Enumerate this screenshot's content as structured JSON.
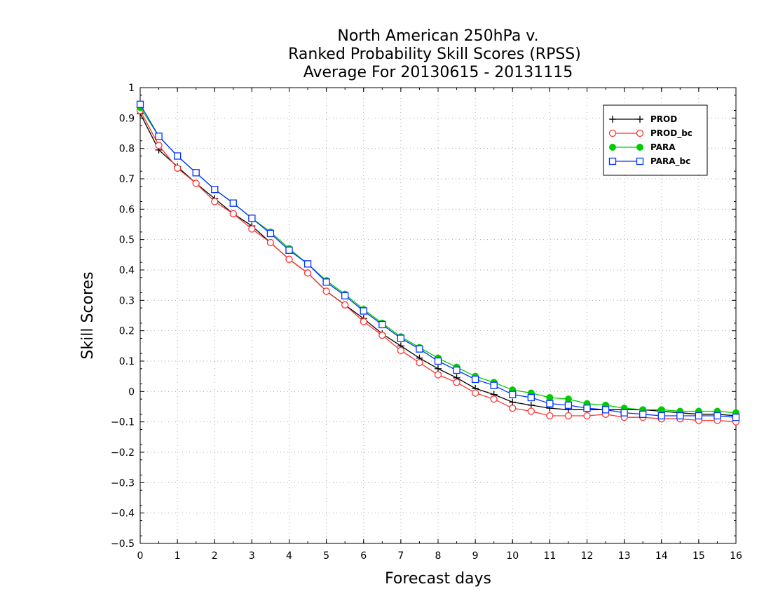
{
  "chart_data": {
    "type": "line",
    "title": [
      "North American 250hPa v.",
      "Ranked Probability Skill Scores (RPSS)",
      "Average For 20130615 - 20131115"
    ],
    "xlabel": "Forecast days",
    "ylabel": "Skill Scores",
    "xlim": [
      0,
      16
    ],
    "ylim": [
      -0.5,
      1
    ],
    "x_ticks": [
      0,
      1,
      2,
      3,
      4,
      5,
      6,
      7,
      8,
      9,
      10,
      11,
      12,
      13,
      14,
      15,
      16
    ],
    "y_ticks": [
      -0.5,
      -0.4,
      -0.3,
      -0.2,
      -0.1,
      0,
      0.1,
      0.2,
      0.3,
      0.4,
      0.5,
      0.6,
      0.7,
      0.8,
      0.9,
      1
    ],
    "y_tick_labels": [
      "−0.5",
      "−0.4",
      "−0.3",
      "−0.2",
      "−0.1",
      "0",
      "0.1",
      "0.2",
      "0.3",
      "0.4",
      "0.5",
      "0.6",
      "0.7",
      "0.8",
      "0.9",
      "1"
    ],
    "grid": true,
    "legend_position": "top-right",
    "x": [
      0,
      0.5,
      1,
      1.5,
      2,
      2.5,
      3,
      3.5,
      4,
      4.5,
      5,
      5.5,
      6,
      6.5,
      7,
      7.5,
      8,
      8.5,
      9,
      9.5,
      10,
      10.5,
      11,
      11.5,
      12,
      12.5,
      13,
      13.5,
      14,
      14.5,
      15,
      15.5,
      16
    ],
    "series": [
      {
        "name": "PROD",
        "color": "#000000",
        "marker": "plus",
        "values": [
          0.915,
          0.795,
          0.74,
          0.685,
          0.635,
          0.585,
          0.545,
          0.49,
          0.435,
          0.39,
          0.33,
          0.285,
          0.24,
          0.19,
          0.15,
          0.11,
          0.075,
          0.045,
          0.01,
          -0.01,
          -0.035,
          -0.045,
          -0.055,
          -0.06,
          -0.06,
          -0.06,
          -0.06,
          -0.06,
          -0.065,
          -0.07,
          -0.075,
          -0.075,
          -0.08
        ]
      },
      {
        "name": "PROD_bc",
        "color": "#ff3333",
        "marker": "open-circle",
        "values": [
          0.925,
          0.81,
          0.735,
          0.685,
          0.625,
          0.585,
          0.535,
          0.49,
          0.435,
          0.39,
          0.33,
          0.285,
          0.23,
          0.185,
          0.135,
          0.095,
          0.055,
          0.03,
          -0.005,
          -0.025,
          -0.055,
          -0.065,
          -0.08,
          -0.08,
          -0.08,
          -0.075,
          -0.085,
          -0.085,
          -0.09,
          -0.09,
          -0.095,
          -0.095,
          -0.1
        ]
      },
      {
        "name": "PARA",
        "color": "#00cc00",
        "marker": "filled-circle",
        "values": [
          0.935,
          0.84,
          0.775,
          0.72,
          0.665,
          0.62,
          0.57,
          0.525,
          0.47,
          0.42,
          0.365,
          0.32,
          0.27,
          0.225,
          0.18,
          0.145,
          0.11,
          0.08,
          0.05,
          0.03,
          0.005,
          -0.005,
          -0.02,
          -0.025,
          -0.04,
          -0.045,
          -0.055,
          -0.06,
          -0.06,
          -0.065,
          -0.065,
          -0.065,
          -0.07
        ]
      },
      {
        "name": "PARA_bc",
        "color": "#0033ff",
        "marker": "open-square",
        "values": [
          0.945,
          0.84,
          0.775,
          0.72,
          0.665,
          0.62,
          0.57,
          0.52,
          0.465,
          0.42,
          0.36,
          0.315,
          0.265,
          0.22,
          0.175,
          0.14,
          0.1,
          0.07,
          0.04,
          0.02,
          -0.01,
          -0.02,
          -0.04,
          -0.045,
          -0.055,
          -0.06,
          -0.07,
          -0.075,
          -0.08,
          -0.08,
          -0.08,
          -0.08,
          -0.085
        ]
      }
    ]
  }
}
